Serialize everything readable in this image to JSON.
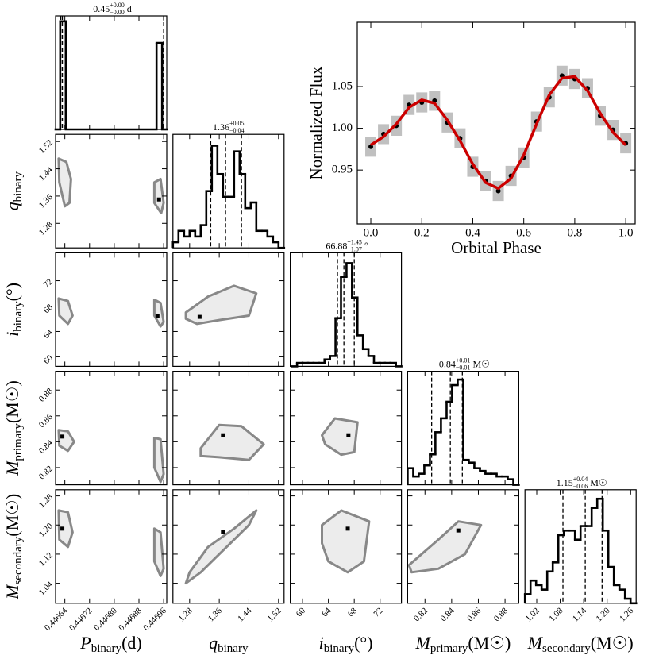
{
  "chart_data": [
    {
      "type": "corner",
      "variables": [
        {
          "label": {
            "symbol": "P",
            "subscript": "binary",
            "unit": "(d)"
          },
          "xlim": [
            0.44661,
            0.44697
          ],
          "xticks": [
            0.44664,
            0.44672,
            {
              "value": 0.4468,
              "label": "0.44680"
            },
            0.44688,
            0.44696
          ]
        },
        {
          "label": {
            "symbol": "q",
            "subscript": "binary"
          },
          "xlim": [
            1.235,
            1.535
          ],
          "xticks": [
            1.28,
            1.36,
            1.44,
            1.52
          ],
          "ylim": [
            1.208,
            1.541
          ],
          "yticks": [
            1.28,
            1.36,
            1.44,
            1.52
          ]
        },
        {
          "label": {
            "symbol": "i",
            "subscript": "binary",
            "unit": "(°)"
          },
          "xlim": [
            58.1,
            75.3
          ],
          "xticks": [
            60,
            64,
            68,
            72
          ],
          "ylim": [
            58.5,
            76.4
          ],
          "yticks": [
            60,
            64,
            68,
            72
          ]
        },
        {
          "label": {
            "symbol": "M",
            "subscript": "primary",
            "unit": "(M☉)"
          },
          "xlim": [
            0.807,
            0.8903
          ],
          "xticks": [
            0.82,
            0.84,
            0.86,
            0.88
          ],
          "ylim": [
            0.8067,
            0.8945
          ],
          "yticks": [
            0.82,
            0.84,
            0.86,
            0.88
          ]
        },
        {
          "label": {
            "symbol": "M",
            "subscript": "secondary",
            "unit": "(M☉)"
          },
          "xlim": [
            0.99,
            1.274
          ],
          "xticks": [
            1.02,
            1.08,
            1.14,
            {
              "value": 1.2,
              "label": "1.20"
            },
            1.26
          ],
          "ylim": [
            0.985,
            1.297
          ],
          "yticks": [
            1.04,
            1.12,
            {
              "value": 1.2,
              "label": "1.20"
            },
            1.28
          ]
        }
      ],
      "histograms": [
        {
          "title": {
            "value": "0.45",
            "plus": "+0.00",
            "minus": "−0.00",
            "unit": "d"
          },
          "bins": [
            0.44661,
            0.446625,
            0.446643,
            0.446937,
            0.446955,
            0.44697
          ],
          "counts": [
            0,
            100,
            0,
            80,
            0
          ],
          "ylim": [
            0,
            105
          ],
          "quantiles": [
            0.446627,
            0.446632,
            0.44696
          ]
        },
        {
          "title": {
            "value": "1.36",
            "plus": "+0.05",
            "minus": "−0.04"
          },
          "bins": [
            1.235,
            1.25,
            1.265,
            1.28,
            1.295,
            1.31,
            1.325,
            1.34,
            1.355,
            1.37,
            1.385,
            1.4,
            1.415,
            1.43,
            1.445,
            1.46,
            1.475,
            1.49,
            1.505,
            1.52,
            1.535
          ],
          "counts": [
            1,
            3,
            2,
            3,
            2,
            4,
            10,
            18,
            13,
            9,
            9,
            17,
            13,
            7,
            8,
            3,
            3,
            2,
            1,
            0
          ],
          "ylim": [
            0,
            20
          ],
          "quantiles": [
            1.337,
            1.377,
            1.42
          ]
        },
        {
          "title": {
            "value": "66.88",
            "plus": "+1.45",
            "minus": "−1.07",
            "unit": "°"
          },
          "bins": [
            58.3,
            59.15,
            60,
            60.85,
            61.7,
            62.55,
            63.4,
            64.25,
            65.1,
            65.95,
            66.8,
            67.65,
            68.5,
            69.35,
            70.2,
            71.05,
            71.9,
            72.75,
            73.6,
            74.45,
            75.3
          ],
          "counts": [
            0,
            1,
            1,
            1,
            1,
            1,
            2,
            3,
            14,
            26,
            30,
            20,
            9,
            5,
            3,
            1,
            1,
            1,
            1,
            0
          ],
          "ylim": [
            0,
            33
          ],
          "quantiles": [
            65.4,
            66.4,
            68.0
          ]
        },
        {
          "title": {
            "value": "0.84",
            "plus": "+0.01",
            "minus": "−0.01",
            "unit": "M☉"
          },
          "bins": [
            0.807,
            0.8112,
            0.8153,
            0.8195,
            0.8237,
            0.8278,
            0.832,
            0.8362,
            0.8403,
            0.8445,
            0.8487,
            0.8528,
            0.857,
            0.8612,
            0.8653,
            0.8695,
            0.8737,
            0.8778,
            0.882,
            0.8862,
            0.8903
          ],
          "counts": [
            6,
            3,
            4,
            7,
            11,
            19,
            24,
            30,
            36,
            38,
            9,
            8,
            6,
            5,
            4,
            4,
            3,
            3,
            2,
            0
          ],
          "ylim": [
            0,
            41
          ],
          "quantiles": [
            0.825,
            0.839,
            0.848
          ]
        },
        {
          "title": {
            "value": "1.15",
            "plus": "+0.04",
            "minus": "−0.06",
            "unit": "M☉"
          },
          "bins": [
            0.99,
            1.0042,
            1.0184,
            1.0326,
            1.0468,
            1.061,
            1.0752,
            1.0894,
            1.1036,
            1.1178,
            1.132,
            1.1462,
            1.1604,
            1.1746,
            1.1888,
            1.203,
            1.2172,
            1.2314,
            1.2456,
            1.2598,
            1.274
          ],
          "counts": [
            2,
            5,
            4,
            3,
            7,
            9,
            15,
            16,
            16,
            14,
            17,
            17,
            21,
            23,
            16,
            8,
            4,
            3,
            1,
            0
          ],
          "ylim": [
            0,
            25
          ],
          "quantiles": [
            1.087,
            1.144,
            1.187
          ]
        }
      ],
      "pairs": [
        {
          "contours": [
            {
              "x": [
                0.44662,
                0.446645,
                0.44666,
                0.446655,
                0.44664,
                0.446622
              ],
              "y": [
                1.47,
                1.46,
                1.41,
                1.34,
                1.33,
                1.4
              ]
            },
            {
              "x": [
                0.44693,
                0.44695,
                0.44696,
                0.446952,
                0.44693
              ],
              "y": [
                1.4,
                1.41,
                1.34,
                1.31,
                1.34
              ]
            }
          ],
          "peak": {
            "x": 0.446945,
            "y": 1.35
          }
        },
        {
          "contours": [
            {
              "x": [
                0.44662,
                0.44665,
                0.446665,
                0.44665,
                0.446622
              ],
              "y": [
                69.2,
                68.8,
                66.5,
                65.2,
                66.5
              ]
            },
            {
              "x": [
                0.44693,
                0.44695,
                0.44696,
                0.44695,
                0.44693
              ],
              "y": [
                69,
                68.5,
                65.5,
                64.8,
                66.5
              ]
            }
          ],
          "peak": {
            "x": 0.44694,
            "y": 66.5
          }
        },
        {
          "contours": [
            {
              "x": [
                1.27,
                1.33,
                1.4,
                1.46,
                1.44,
                1.36,
                1.3,
                1.27
              ],
              "y": [
                67,
                69.5,
                71.2,
                70,
                66.5,
                65.8,
                65.2,
                66
              ]
            }
          ],
          "peak": {
            "x": 1.307,
            "y": 66.3
          }
        },
        {
          "contours": [
            {
              "x": [
                0.44662,
                0.44665,
                0.44667,
                0.44665,
                0.446622
              ],
              "y": [
                0.849,
                0.848,
                0.84,
                0.833,
                0.837
              ]
            },
            {
              "x": [
                0.44693,
                0.44695,
                0.44696,
                0.44695,
                0.44693
              ],
              "y": [
                0.843,
                0.842,
                0.815,
                0.809,
                0.82
              ]
            }
          ],
          "peak": {
            "x": 0.446632,
            "y": 0.844
          }
        },
        {
          "contours": [
            {
              "x": [
                1.31,
                1.36,
                1.42,
                1.48,
                1.44,
                1.36,
                1.31
              ],
              "y": [
                0.835,
                0.853,
                0.852,
                0.838,
                0.826,
                0.828,
                0.829
              ]
            }
          ],
          "peak": {
            "x": 1.37,
            "y": 0.845
          }
        },
        {
          "contours": [
            {
              "x": [
                63,
                65,
                68.5,
                68,
                66,
                63.5
              ],
              "y": [
                0.845,
                0.858,
                0.855,
                0.832,
                0.83,
                0.838
              ]
            }
          ],
          "peak": {
            "x": 67.1,
            "y": 0.845
          }
        },
        {
          "contours": [
            {
              "x": [
                0.44662,
                0.44665,
                0.446665,
                0.44665,
                0.446622
              ],
              "y": [
                1.24,
                1.235,
                1.18,
                1.14,
                1.16
              ]
            },
            {
              "x": [
                0.44693,
                0.44695,
                0.44696,
                0.44695,
                0.44693
              ],
              "y": [
                1.19,
                1.18,
                1.08,
                1.06,
                1.1
              ]
            }
          ],
          "peak": {
            "x": 0.446632,
            "y": 1.19
          }
        },
        {
          "contours": [
            {
              "x": [
                1.28,
                1.33,
                1.4,
                1.46,
                1.44,
                1.38,
                1.31,
                1.27
              ],
              "y": [
                1.07,
                1.14,
                1.19,
                1.24,
                1.2,
                1.14,
                1.07,
                1.04
              ]
            }
          ],
          "peak": {
            "x": 1.37,
            "y": 1.18
          }
        },
        {
          "contours": [
            {
              "x": [
                63,
                66,
                70.3,
                69.5,
                67,
                64,
                63
              ],
              "y": [
                1.2,
                1.24,
                1.21,
                1.1,
                1.07,
                1.1,
                1.15
              ]
            }
          ],
          "peak": {
            "x": 67,
            "y": 1.19
          }
        },
        {
          "contours": [
            {
              "x": [
                0.808,
                0.83,
                0.845,
                0.862,
                0.85,
                0.83,
                0.81
              ],
              "y": [
                1.09,
                1.16,
                1.21,
                1.2,
                1.12,
                1.08,
                1.07
              ]
            }
          ],
          "peak": {
            "x": 0.845,
            "y": 1.185
          }
        }
      ]
    },
    {
      "type": "line",
      "x_label": "Orbital Phase",
      "y_label": "Normalized Flux",
      "x": [
        0,
        0.05,
        0.1,
        0.15,
        0.2,
        0.25,
        0.3,
        0.35,
        0.4,
        0.45,
        0.5,
        0.55,
        0.6,
        0.65,
        0.7,
        0.75,
        0.8,
        0.85,
        0.9,
        0.95,
        1
      ],
      "series": [
        {
          "color": "#000000",
          "style": "points",
          "values": [
            0.978,
            0.993,
            1.003,
            1.028,
            1.031,
            1.033,
            1.007,
            0.988,
            0.954,
            0.937,
            0.925,
            0.943,
            0.965,
            1.008,
            1.037,
            1.063,
            1.059,
            1.048,
            1.015,
            0.998,
            0.982
          ],
          "errors": [
            0.012,
            0.012,
            0.012,
            0.012,
            0.012,
            0.012,
            0.012,
            0.012,
            0.012,
            0.012,
            0.012,
            0.012,
            0.012,
            0.012,
            0.012,
            0.012,
            0.012,
            0.012,
            0.012,
            0.012,
            0.012
          ]
        },
        {
          "color": "#cc0000",
          "style": "line",
          "values": [
            0.98,
            0.99,
            1.005,
            1.025,
            1.034,
            1.03,
            1.01,
            0.985,
            0.957,
            0.935,
            0.928,
            0.94,
            0.968,
            1.005,
            1.04,
            1.06,
            1.062,
            1.045,
            1.018,
            0.995,
            0.98
          ]
        }
      ],
      "xlim": [
        -0.053,
        1.037
      ],
      "xticks": [
        {
          "value": 0,
          "label": "0.0"
        },
        0.2,
        0.4,
        0.6,
        0.8,
        {
          "value": 1,
          "label": "1.0"
        }
      ],
      "ylim": [
        0.8855,
        1.127
      ],
      "yticks": [
        0.95,
        {
          "value": 1,
          "label": "1.00"
        },
        1.05
      ]
    }
  ]
}
